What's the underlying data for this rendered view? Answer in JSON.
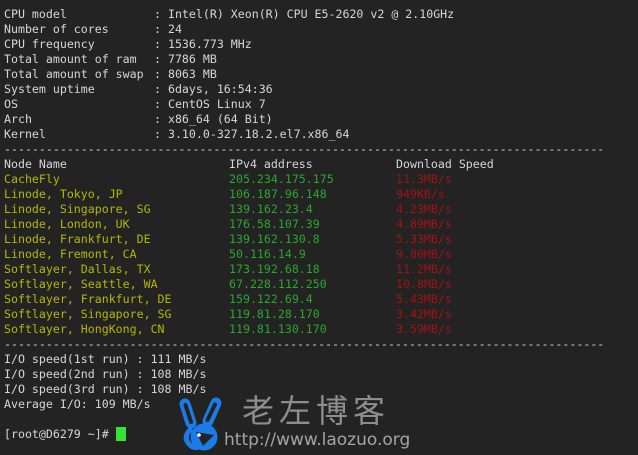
{
  "terminal": {
    "background": "#232323",
    "foreground": "#d6d6d6"
  },
  "system_info": {
    "rows": [
      {
        "label": "CPU model",
        "value": "Intel(R) Xeon(R) CPU E5-2620 v2 @ 2.10GHz"
      },
      {
        "label": "Number of cores",
        "value": "24"
      },
      {
        "label": "CPU frequency",
        "value": "1536.773 MHz"
      },
      {
        "label": "Total amount of ram",
        "value": "7786 MB"
      },
      {
        "label": "Total amount of swap",
        "value": "8063 MB"
      },
      {
        "label": "System uptime",
        "value": "6days, 16:54:36"
      },
      {
        "label": "OS",
        "value": "CentOS Linux 7"
      },
      {
        "label": "Arch",
        "value": "x86_64 (64 Bit)"
      },
      {
        "label": "Kernel",
        "value": "3.10.0-327.18.2.el7.x86_64"
      }
    ]
  },
  "separator": "--------------------------------------------------------------------------------------",
  "speed_table": {
    "headers": {
      "node": "Node Name",
      "ip": "IPv4 address",
      "speed": "Download Speed"
    },
    "colors": {
      "node": "#b6b600",
      "ip": "#2aa82a",
      "speed": "#a31212"
    },
    "rows": [
      {
        "node": "CacheFly",
        "ip": "205.234.175.175",
        "speed": "11.3MB/s"
      },
      {
        "node": "Linode, Tokyo, JP",
        "ip": "106.187.96.148",
        "speed": "949KB/s"
      },
      {
        "node": "Linode, Singapore, SG",
        "ip": "139.162.23.4",
        "speed": "4.23MB/s"
      },
      {
        "node": "Linode, London, UK",
        "ip": "176.58.107.39",
        "speed": "4.89MB/s"
      },
      {
        "node": "Linode, Frankfurt, DE",
        "ip": "139.162.130.8",
        "speed": "5.33MB/s"
      },
      {
        "node": "Linode, Fremont, CA",
        "ip": "50.116.14.9",
        "speed": "9.80MB/s"
      },
      {
        "node": "Softlayer, Dallas, TX",
        "ip": "173.192.68.18",
        "speed": "11.2MB/s"
      },
      {
        "node": "Softlayer, Seattle, WA",
        "ip": "67.228.112.250",
        "speed": "10.8MB/s"
      },
      {
        "node": "Softlayer, Frankfurt, DE",
        "ip": "159.122.69.4",
        "speed": "5.43MB/s"
      },
      {
        "node": "Softlayer, Singapore, SG",
        "ip": "119.81.28.170",
        "speed": "3.42MB/s"
      },
      {
        "node": "Softlayer, HongKong, CN",
        "ip": "119.81.130.170",
        "speed": "3.59MB/s"
      }
    ]
  },
  "io_section": {
    "lines": [
      "I/O speed(1st run) : 111 MB/s",
      "I/O speed(2nd run) : 108 MB/s",
      "I/O speed(3rd run) : 108 MB/s",
      "Average I/O: 109 MB/s"
    ]
  },
  "prompt": {
    "text": "[root@D6279 ~]# ",
    "cursor_color": "#35e335"
  },
  "watermark": {
    "title": "老左博客",
    "url": "http://www.laozuo.org",
    "logo": "peace-hand-icon",
    "logo_color": "#1b7ce8",
    "title_color": "#8d8d8d",
    "url_color": "#a4a4a4"
  }
}
